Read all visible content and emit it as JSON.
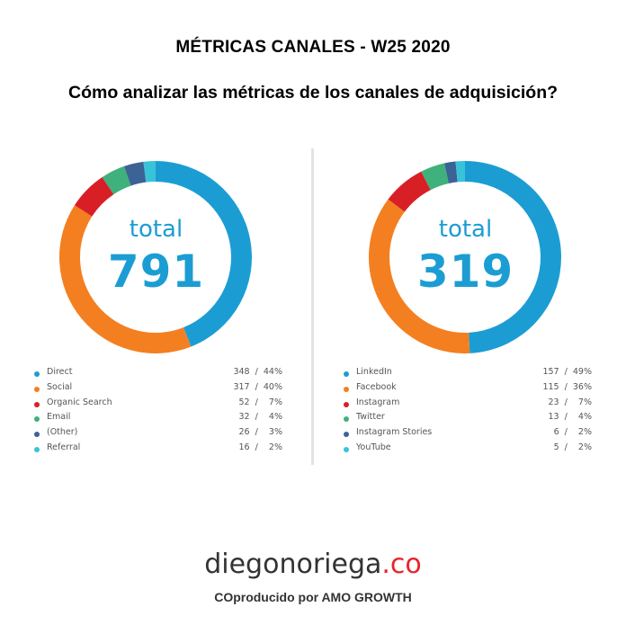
{
  "header": {
    "title": "MÉTRICAS CANALES - W25 2020",
    "subtitle": "Cómo analizar las métricas de los canales de adquisición?"
  },
  "chart_data": [
    {
      "type": "pie",
      "center_label": "total",
      "total": "791",
      "series": [
        {
          "name": "Direct",
          "value": 348,
          "display": "348  /  44%",
          "color": "#1b9dd3"
        },
        {
          "name": "Social",
          "value": 317,
          "display": "317  /  40%",
          "color": "#f47f20"
        },
        {
          "name": "Organic Search",
          "value": 52,
          "display": "52  /    7%",
          "color": "#d91f26"
        },
        {
          "name": "Email",
          "value": 32,
          "display": "32  /    4%",
          "color": "#3fb17c"
        },
        {
          "name": "(Other)",
          "value": 26,
          "display": "26  /    3%",
          "color": "#3c6395"
        },
        {
          "name": "Referral",
          "value": 16,
          "display": "16  /    2%",
          "color": "#39c3d9"
        }
      ]
    },
    {
      "type": "pie",
      "center_label": "total",
      "total": "319",
      "series": [
        {
          "name": "LinkedIn",
          "value": 157,
          "display": "157  /  49%",
          "color": "#1b9dd3"
        },
        {
          "name": "Facebook",
          "value": 115,
          "display": "115  /  36%",
          "color": "#f47f20"
        },
        {
          "name": "Instagram",
          "value": 23,
          "display": "23  /    7%",
          "color": "#d91f26"
        },
        {
          "name": "Twitter",
          "value": 13,
          "display": "13  /    4%",
          "color": "#3fb17c"
        },
        {
          "name": "Instagram Stories",
          "value": 6,
          "display": "6  /    2%",
          "color": "#3c6395"
        },
        {
          "name": "YouTube",
          "value": 5,
          "display": "5  /    2%",
          "color": "#39c3d9"
        }
      ]
    }
  ],
  "footer": {
    "brand_name": "diegonoriega",
    "brand_domain": ".co",
    "credit": "COproducido por AMO GROWTH"
  }
}
